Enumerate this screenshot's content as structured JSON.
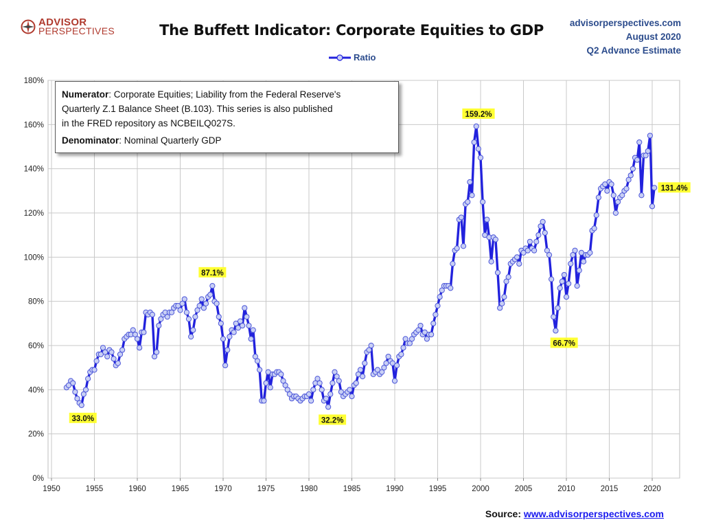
{
  "logo": {
    "line1": "ADVISOR",
    "line2": "PERSPECTIVES"
  },
  "title": "The Buffett Indicator: Corporate Equities to GDP",
  "top_right": {
    "site": "advisorperspectives.com",
    "date": "August 2020",
    "estimate": "Q2 Advance Estimate"
  },
  "legend": {
    "label": "Ratio"
  },
  "note": {
    "numerator_label": "Numerator",
    "numerator_text_1": ": Corporate Equities; Liability from the Federal Reserve's",
    "numerator_text_2": "Quarterly Z.1 Balance Sheet (B.103). This series is also published",
    "numerator_text_3": "in the FRED repository  as NCBEILQ027S.",
    "denominator_label": "Denominator",
    "denominator_text": ": Nominal Quarterly GDP"
  },
  "source": {
    "label": "Source: ",
    "link": "www.advisorperspectives.com"
  },
  "colors": {
    "line": "#2222dd",
    "marker_fill": "#c8cff5",
    "annotation_bg": "#ffff33",
    "grid": "#c8c8c8",
    "text_blue": "#2b4b8c"
  },
  "chart_data": {
    "type": "line",
    "title": "The Buffett Indicator: Corporate Equities to GDP",
    "xlabel": "",
    "ylabel": "",
    "xlim": [
      1950,
      2022
    ],
    "ylim": [
      0,
      180
    ],
    "x_ticks": [
      1950,
      1955,
      1960,
      1965,
      1970,
      1975,
      1980,
      1985,
      1990,
      1995,
      2000,
      2005,
      2010,
      2015,
      2020
    ],
    "y_ticks": [
      0,
      20,
      40,
      60,
      80,
      100,
      120,
      140,
      160,
      180
    ],
    "y_tick_labels": [
      "0%",
      "20%",
      "40%",
      "60%",
      "80%",
      "100%",
      "120%",
      "140%",
      "160%",
      "180%"
    ],
    "grid": true,
    "legend_position": "top-center",
    "series": [
      {
        "name": "Ratio",
        "x": [
          1951.75,
          1952.0,
          1952.25,
          1952.5,
          1952.75,
          1953.0,
          1953.25,
          1953.5,
          1953.75,
          1954.0,
          1954.25,
          1954.5,
          1954.75,
          1955.0,
          1955.25,
          1955.5,
          1955.75,
          1956.0,
          1956.25,
          1956.5,
          1956.75,
          1957.0,
          1957.25,
          1957.5,
          1957.75,
          1958.0,
          1958.25,
          1958.5,
          1958.75,
          1959.0,
          1959.25,
          1959.5,
          1959.75,
          1960.0,
          1960.25,
          1960.5,
          1960.75,
          1961.0,
          1961.25,
          1961.5,
          1961.75,
          1962.0,
          1962.25,
          1962.5,
          1962.75,
          1963.0,
          1963.25,
          1963.5,
          1963.75,
          1964.0,
          1964.25,
          1964.5,
          1964.75,
          1965.0,
          1965.25,
          1965.5,
          1965.75,
          1966.0,
          1966.25,
          1966.5,
          1966.75,
          1967.0,
          1967.25,
          1967.5,
          1967.75,
          1968.0,
          1968.25,
          1968.5,
          1968.75,
          1969.0,
          1969.25,
          1969.5,
          1969.75,
          1970.0,
          1970.25,
          1970.5,
          1970.75,
          1971.0,
          1971.25,
          1971.5,
          1971.75,
          1972.0,
          1972.25,
          1972.5,
          1972.75,
          1973.0,
          1973.25,
          1973.5,
          1973.75,
          1974.0,
          1974.25,
          1974.5,
          1974.75,
          1975.0,
          1975.25,
          1975.5,
          1975.75,
          1976.0,
          1976.25,
          1976.5,
          1976.75,
          1977.0,
          1977.25,
          1977.5,
          1977.75,
          1978.0,
          1978.25,
          1978.5,
          1978.75,
          1979.0,
          1979.25,
          1979.5,
          1979.75,
          1980.0,
          1980.25,
          1980.5,
          1980.75,
          1981.0,
          1981.25,
          1981.5,
          1981.75,
          1982.0,
          1982.25,
          1982.5,
          1982.75,
          1983.0,
          1983.25,
          1983.5,
          1983.75,
          1984.0,
          1984.25,
          1984.5,
          1984.75,
          1985.0,
          1985.25,
          1985.5,
          1985.75,
          1986.0,
          1986.25,
          1986.5,
          1986.75,
          1987.0,
          1987.25,
          1987.5,
          1987.75,
          1988.0,
          1988.25,
          1988.5,
          1988.75,
          1989.0,
          1989.25,
          1989.5,
          1989.75,
          1990.0,
          1990.25,
          1990.5,
          1990.75,
          1991.0,
          1991.25,
          1991.5,
          1991.75,
          1992.0,
          1992.25,
          1992.5,
          1992.75,
          1993.0,
          1993.25,
          1993.5,
          1993.75,
          1994.0,
          1994.25,
          1994.5,
          1994.75,
          1995.0,
          1995.25,
          1995.5,
          1995.75,
          1996.0,
          1996.25,
          1996.5,
          1996.75,
          1997.0,
          1997.25,
          1997.5,
          1997.75,
          1998.0,
          1998.25,
          1998.5,
          1998.75,
          1999.0,
          1999.25,
          1999.5,
          1999.75,
          2000.0,
          2000.25,
          2000.5,
          2000.75,
          2001.0,
          2001.25,
          2001.5,
          2001.75,
          2002.0,
          2002.25,
          2002.5,
          2002.75,
          2003.0,
          2003.25,
          2003.5,
          2003.75,
          2004.0,
          2004.25,
          2004.5,
          2004.75,
          2005.0,
          2005.25,
          2005.5,
          2005.75,
          2006.0,
          2006.25,
          2006.5,
          2006.75,
          2007.0,
          2007.25,
          2007.5,
          2007.75,
          2008.0,
          2008.25,
          2008.5,
          2008.75,
          2009.0,
          2009.25,
          2009.5,
          2009.75,
          2010.0,
          2010.25,
          2010.5,
          2010.75,
          2011.0,
          2011.25,
          2011.5,
          2011.75,
          2012.0,
          2012.25,
          2012.5,
          2012.75,
          2013.0,
          2013.25,
          2013.5,
          2013.75,
          2014.0,
          2014.25,
          2014.5,
          2014.75,
          2015.0,
          2015.25,
          2015.5,
          2015.75,
          2016.0,
          2016.25,
          2016.5,
          2016.75,
          2017.0,
          2017.25,
          2017.5,
          2017.75,
          2018.0,
          2018.25,
          2018.5,
          2018.75,
          2019.0,
          2019.25,
          2019.5,
          2019.75,
          2020.0,
          2020.25
        ],
        "values": [
          41,
          42,
          44,
          43,
          39,
          36,
          34,
          33,
          38,
          40,
          45,
          48,
          49,
          49,
          53,
          56,
          56,
          59,
          57,
          55,
          58,
          57,
          54,
          51,
          52,
          56,
          58,
          63,
          64,
          65,
          65,
          67,
          65,
          63,
          59,
          66,
          66,
          75,
          74,
          75,
          74,
          55,
          57,
          69,
          72,
          74,
          75,
          73,
          75,
          75,
          77,
          78,
          78,
          76,
          79,
          81,
          75,
          72,
          64,
          67,
          73,
          76,
          78,
          81,
          77,
          79,
          82,
          83,
          87,
          80,
          79,
          73,
          70,
          63,
          51,
          58,
          64,
          67,
          66,
          70,
          68,
          71,
          69,
          77,
          73,
          69,
          63,
          67,
          55,
          53,
          49,
          35,
          35,
          43,
          48,
          41,
          47,
          47,
          48,
          48,
          47,
          44,
          42,
          40,
          38,
          36,
          37,
          37,
          36,
          35,
          36,
          37,
          37,
          38,
          35,
          40,
          43,
          45,
          43,
          40,
          35,
          36,
          32.2,
          38,
          43,
          48,
          46,
          44,
          39,
          37,
          38,
          39,
          40,
          37,
          42,
          43,
          47,
          49,
          46,
          52,
          57,
          58,
          60,
          47,
          48,
          49,
          47,
          48,
          50,
          52,
          55,
          53,
          52,
          44,
          51,
          55,
          56,
          59,
          63,
          61,
          61,
          63,
          65,
          66,
          67,
          69,
          65,
          66,
          63,
          65,
          65,
          70,
          74,
          78,
          82,
          85,
          87,
          87,
          87,
          86,
          97,
          103,
          104,
          117,
          118,
          105,
          124,
          125,
          134,
          128,
          152,
          159.2,
          149,
          145,
          125,
          110,
          117,
          109,
          98,
          109,
          108,
          93,
          77,
          79,
          82,
          89,
          91,
          97,
          98,
          99,
          100,
          97,
          103,
          102,
          104,
          103,
          107,
          104,
          103,
          107,
          110,
          114,
          116,
          111,
          103,
          101,
          90,
          73,
          66.7,
          77,
          86,
          89,
          92,
          82,
          88,
          97,
          101,
          103,
          87,
          94,
          102,
          98,
          101,
          101,
          102,
          112,
          113,
          119,
          127,
          131,
          132,
          133,
          130,
          134,
          133,
          128,
          120,
          125,
          127,
          128,
          130,
          131,
          135,
          137,
          140,
          145,
          144,
          152,
          128,
          146,
          146,
          148,
          155,
          123,
          131.4
        ]
      }
    ],
    "annotations": [
      {
        "label": "33.0%",
        "x": 1953.5,
        "y": 33
      },
      {
        "label": "87.1%",
        "x": 1968.75,
        "y": 87.1
      },
      {
        "label": "32.2%",
        "x": 1982.25,
        "y": 32.2
      },
      {
        "label": "159.2%",
        "x": 2000.0,
        "y": 159.2
      },
      {
        "label": "66.7%",
        "x": 2009.25,
        "y": 66.7
      },
      {
        "label": "131.4%",
        "x": 2020.25,
        "y": 131.4
      }
    ]
  }
}
